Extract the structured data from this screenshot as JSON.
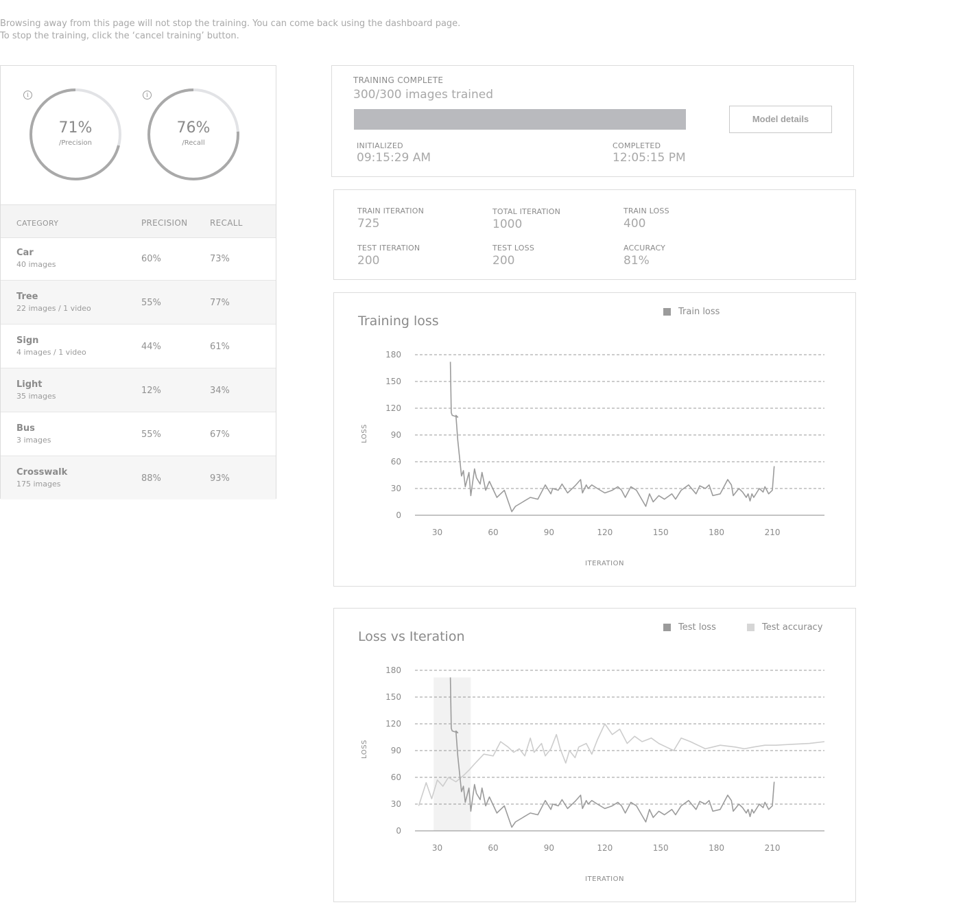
{
  "notice": {
    "line1": "Browsing away from this page will not stop the training. You can come back using the dashboard page.",
    "line2": "To stop the training, click the ‘cancel training’ button."
  },
  "summary": {
    "precision": {
      "value": "71%",
      "label": "/Precision",
      "fraction": 0.71,
      "info_icon": "info-icon"
    },
    "recall": {
      "value": "76%",
      "label": "/Recall",
      "fraction": 0.76,
      "info_icon": "info-icon"
    }
  },
  "table": {
    "headers": {
      "category": "CATEGORY",
      "precision": "PRECISION",
      "recall": "RECALL"
    },
    "rows": [
      {
        "name": "Car",
        "sub": "40 images",
        "precision": "60%",
        "recall": "73%"
      },
      {
        "name": "Tree",
        "sub": "22 images / 1 video",
        "precision": "55%",
        "recall": "77%"
      },
      {
        "name": "Sign",
        "sub": "4 images / 1 video",
        "precision": "44%",
        "recall": "61%"
      },
      {
        "name": "Light",
        "sub": "35 images",
        "precision": "12%",
        "recall": "34%"
      },
      {
        "name": "Bus",
        "sub": "3 images",
        "precision": "55%",
        "recall": "67%"
      },
      {
        "name": "Crosswalk",
        "sub": "175 images",
        "precision": "88%",
        "recall": "93%"
      }
    ]
  },
  "status": {
    "title": "TRAINING COMPLETE",
    "subtitle": "300/300 images trained",
    "progress_fraction": 1.0,
    "initialized_label": "INITIALIZED",
    "initialized_value": "09:15:29 AM",
    "completed_label": "COMPLETED",
    "completed_value": "12:05:15 PM",
    "button_label": "Model details"
  },
  "stats": {
    "train_iteration": {
      "label": "TRAIN ITERATION",
      "value": "725"
    },
    "total_iteration": {
      "label": "TOTAL ITERATION",
      "value": "1000"
    },
    "train_loss": {
      "label": "TRAIN LOSS",
      "value": "400"
    },
    "test_iteration": {
      "label": "TEST ITERATION",
      "value": "200"
    },
    "test_loss": {
      "label": "TEST LOSS",
      "value": "200"
    },
    "accuracy": {
      "label": "ACCURACY",
      "value": "81%"
    }
  },
  "colors": {
    "series_dark": "#9b9b9b",
    "series_light": "#cdcdcd",
    "grid": "#7a7a7a",
    "highlight": "#f2f2f2"
  },
  "chart_data": [
    {
      "type": "line",
      "title": "Training loss",
      "xlabel": "ITERATION",
      "ylabel": "LOSS",
      "xticks": [
        30,
        60,
        90,
        120,
        150,
        180,
        210
      ],
      "yticks": [
        0,
        30,
        60,
        90,
        120,
        150,
        180
      ],
      "xlim": [
        18,
        238
      ],
      "ylim": [
        0,
        180
      ],
      "grid": true,
      "legend": "top-right",
      "series": [
        {
          "name": "Train loss",
          "color": "#9b9b9b",
          "x": [
            37,
            37.5,
            38,
            41,
            40,
            41,
            43,
            44,
            45,
            47,
            48,
            50,
            51,
            53,
            54,
            56,
            58,
            62,
            66,
            70,
            72,
            76,
            80,
            84,
            88,
            91,
            92,
            95,
            97,
            100,
            104,
            107,
            108,
            110,
            111,
            113,
            116,
            120,
            124,
            127,
            129,
            131,
            134,
            137,
            142,
            144,
            146,
            149,
            152,
            156,
            158,
            161,
            165,
            169,
            171,
            174,
            176,
            178,
            182,
            186,
            188,
            189,
            192,
            194,
            196,
            197,
            198,
            199,
            200,
            203,
            205,
            206,
            208,
            210,
            211
          ],
          "y": [
            172,
            115,
            112,
            110,
            112,
            84,
            44,
            50,
            32,
            48,
            22,
            52,
            42,
            35,
            48,
            28,
            38,
            20,
            28,
            4,
            10,
            15,
            20,
            18,
            34,
            24,
            30,
            28,
            35,
            25,
            33,
            40,
            25,
            34,
            30,
            34,
            30,
            25,
            28,
            32,
            28,
            20,
            32,
            28,
            10,
            24,
            15,
            22,
            18,
            24,
            18,
            28,
            34,
            24,
            33,
            30,
            34,
            22,
            24,
            40,
            34,
            22,
            30,
            26,
            20,
            24,
            16,
            24,
            20,
            30,
            26,
            32,
            24,
            28,
            55
          ]
        }
      ]
    },
    {
      "type": "line",
      "title": "Loss vs Iteration",
      "xlabel": "ITERATION",
      "ylabel": "LOSS",
      "xticks": [
        30,
        60,
        90,
        120,
        150,
        180,
        210
      ],
      "yticks": [
        0,
        30,
        60,
        90,
        120,
        150,
        180
      ],
      "xlim": [
        18,
        238
      ],
      "ylim": [
        0,
        180
      ],
      "highlight_x": [
        28,
        48
      ],
      "grid": true,
      "legend": "top-right",
      "series": [
        {
          "name": "Test loss",
          "color": "#9b9b9b",
          "x": [
            37,
            37.5,
            38,
            41,
            40,
            41,
            43,
            44,
            45,
            47,
            48,
            50,
            51,
            53,
            54,
            56,
            58,
            62,
            66,
            70,
            72,
            76,
            80,
            84,
            88,
            91,
            92,
            95,
            97,
            100,
            104,
            107,
            108,
            110,
            111,
            113,
            116,
            120,
            124,
            127,
            129,
            131,
            134,
            137,
            142,
            144,
            146,
            149,
            152,
            156,
            158,
            161,
            165,
            169,
            171,
            174,
            176,
            178,
            182,
            186,
            188,
            189,
            192,
            194,
            196,
            197,
            198,
            199,
            200,
            203,
            205,
            206,
            208,
            210,
            211
          ],
          "y": [
            172,
            115,
            112,
            110,
            112,
            84,
            44,
            50,
            32,
            48,
            22,
            52,
            42,
            35,
            48,
            28,
            38,
            20,
            28,
            4,
            10,
            15,
            20,
            18,
            34,
            24,
            30,
            28,
            35,
            25,
            33,
            40,
            25,
            34,
            30,
            34,
            30,
            25,
            28,
            32,
            28,
            20,
            32,
            28,
            10,
            24,
            15,
            22,
            18,
            24,
            18,
            28,
            34,
            24,
            33,
            30,
            34,
            22,
            24,
            40,
            34,
            22,
            30,
            26,
            20,
            24,
            16,
            24,
            20,
            30,
            26,
            32,
            24,
            28,
            55
          ]
        },
        {
          "name": "Test accuracy",
          "color": "#cdcdcd",
          "x": [
            20,
            24,
            27,
            30,
            33,
            36,
            40,
            44,
            47,
            50,
            55,
            60,
            64,
            68,
            71,
            74,
            77,
            80,
            82,
            86,
            88,
            91,
            94,
            96,
            99,
            101,
            104,
            106,
            110,
            113,
            116,
            120,
            124,
            128,
            132,
            136,
            140,
            145,
            149,
            153,
            157,
            161,
            166,
            170,
            174,
            178,
            182,
            190,
            195,
            200,
            206,
            212,
            220,
            230,
            238
          ],
          "y": [
            28,
            54,
            36,
            57,
            50,
            60,
            55,
            62,
            68,
            75,
            86,
            84,
            100,
            94,
            88,
            92,
            84,
            104,
            88,
            98,
            84,
            92,
            108,
            92,
            76,
            90,
            82,
            94,
            98,
            86,
            102,
            120,
            108,
            114,
            98,
            106,
            100,
            104,
            98,
            94,
            90,
            104,
            100,
            96,
            92,
            94,
            96,
            94,
            92,
            94,
            96,
            96,
            97,
            98,
            100
          ]
        }
      ]
    }
  ]
}
